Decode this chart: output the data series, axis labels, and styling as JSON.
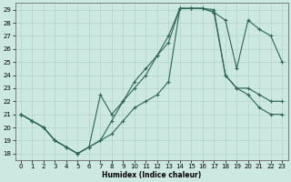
{
  "xlabel": "Humidex (Indice chaleur)",
  "xlim": [
    -0.5,
    23.5
  ],
  "ylim": [
    17.5,
    29.5
  ],
  "yticks": [
    18,
    19,
    20,
    21,
    22,
    23,
    24,
    25,
    26,
    27,
    28,
    29
  ],
  "xticks": [
    0,
    1,
    2,
    3,
    4,
    5,
    6,
    7,
    8,
    9,
    10,
    11,
    12,
    13,
    14,
    15,
    16,
    17,
    18,
    19,
    20,
    21,
    22,
    23
  ],
  "bg_color": "#cce8e0",
  "line_color": "#2a6655",
  "grid_color": "#b0d4cc",
  "line1_x": [
    0,
    1,
    2,
    3,
    4,
    5,
    6,
    7,
    8,
    9,
    10,
    11,
    12,
    13,
    14,
    15,
    16,
    17,
    18,
    19,
    20,
    21,
    22,
    23
  ],
  "line1_y": [
    21.0,
    20.5,
    20.0,
    19.0,
    18.5,
    18.0,
    18.5,
    22.5,
    21.0,
    22.0,
    23.5,
    24.5,
    25.5,
    27.0,
    29.1,
    29.1,
    29.1,
    28.8,
    28.2,
    24.5,
    28.2,
    27.5,
    27.0,
    25.0
  ],
  "line2_x": [
    0,
    1,
    2,
    3,
    4,
    5,
    6,
    7,
    8,
    9,
    10,
    11,
    12,
    13,
    14,
    15,
    16,
    17,
    18,
    19,
    20,
    21,
    22,
    23
  ],
  "line2_y": [
    21.0,
    20.5,
    20.0,
    19.0,
    18.5,
    18.0,
    18.5,
    19.0,
    20.5,
    22.0,
    23.0,
    24.0,
    25.5,
    26.5,
    29.1,
    29.1,
    29.1,
    29.0,
    24.0,
    23.0,
    23.0,
    22.5,
    22.0,
    22.0
  ],
  "line3_x": [
    0,
    1,
    2,
    3,
    4,
    5,
    6,
    7,
    8,
    9,
    10,
    11,
    12,
    13,
    14,
    15,
    16,
    17,
    18,
    19,
    20,
    21,
    22,
    23
  ],
  "line3_y": [
    21.0,
    20.5,
    20.0,
    19.0,
    18.5,
    18.0,
    18.5,
    19.0,
    19.5,
    20.5,
    21.5,
    22.0,
    22.5,
    23.5,
    29.1,
    29.1,
    29.1,
    28.8,
    24.0,
    23.0,
    22.5,
    21.5,
    21.0,
    21.0
  ]
}
